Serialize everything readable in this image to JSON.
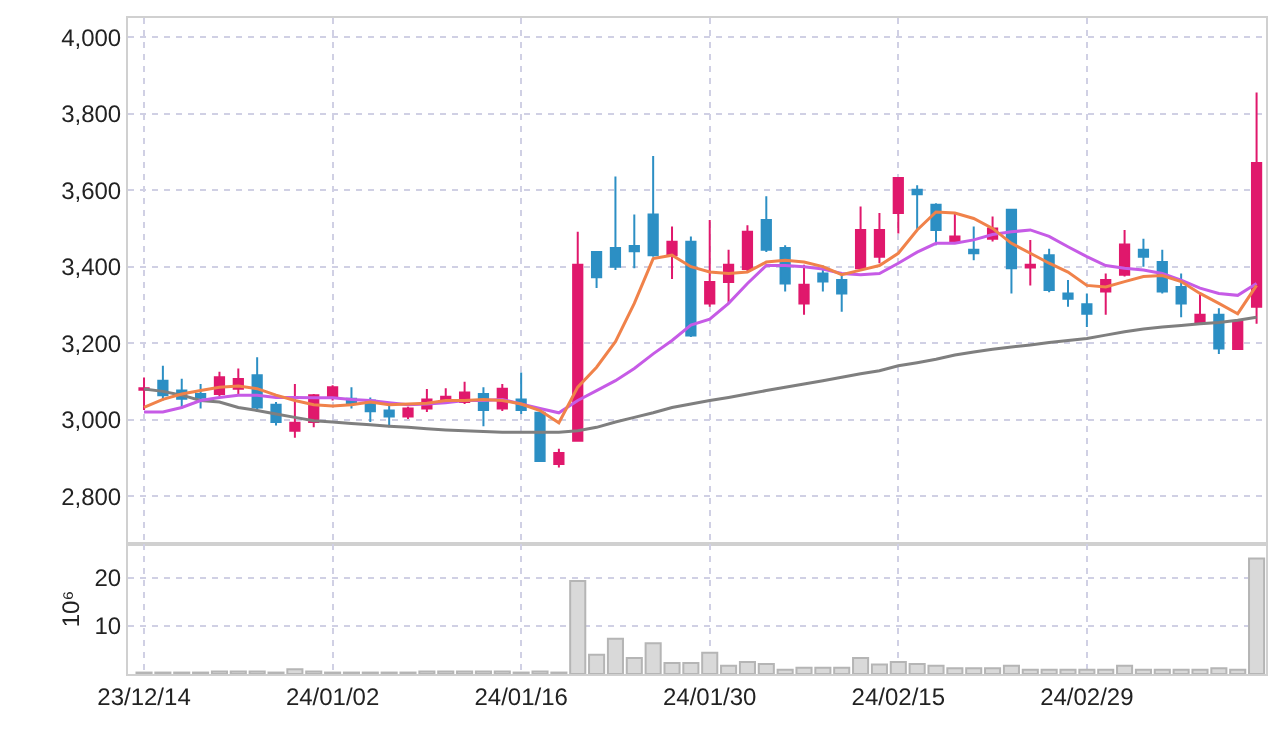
{
  "chart_data": [
    {
      "type": "candlestick",
      "tick_labels": "y",
      "grid": true,
      "categories": [
        null,
        null,
        null,
        null,
        null,
        null,
        null,
        null,
        null,
        null,
        null,
        null,
        null,
        null,
        null,
        null,
        null,
        null,
        null,
        null,
        null,
        null,
        null,
        null,
        null,
        null,
        null,
        null,
        null,
        null,
        null,
        null,
        null,
        null,
        null,
        null,
        null,
        null,
        null,
        null,
        null,
        null,
        null,
        null,
        null,
        null,
        null,
        null,
        null,
        null,
        null,
        null,
        null,
        null,
        null,
        null,
        null,
        null,
        null,
        null
      ],
      "ylim": [
        2675,
        4050
      ],
      "yticks": [
        {
          "value": 2800,
          "label": "2,800"
        },
        {
          "value": 3000,
          "label": "3,000"
        },
        {
          "value": 3200,
          "label": "3,200"
        },
        {
          "value": 3400,
          "label": "3,400"
        },
        {
          "value": 3600,
          "label": "3,600"
        },
        {
          "value": 3800,
          "label": "3,800"
        },
        {
          "value": 4000,
          "label": "4,000"
        }
      ],
      "ohlc": [
        [
          3078,
          3110,
          3025,
          3082
        ],
        [
          3102,
          3141,
          3050,
          3064
        ],
        [
          3076,
          3107,
          3029,
          3055
        ],
        [
          3067,
          3093,
          3029,
          3057
        ],
        [
          3067,
          3125,
          3062,
          3111
        ],
        [
          3081,
          3134,
          3064,
          3106
        ],
        [
          3116,
          3163,
          3020,
          3032
        ],
        [
          3039,
          3046,
          2985,
          2994
        ],
        [
          2971,
          3093,
          2953,
          2992
        ],
        [
          2994,
          3067,
          2980,
          3064
        ],
        [
          3062,
          3090,
          3050,
          3085
        ],
        [
          3055,
          3085,
          3029,
          3043
        ],
        [
          3050,
          3058,
          2994,
          3022
        ],
        [
          3024,
          3046,
          2980,
          3008
        ],
        [
          3008,
          3034,
          3002,
          3029
        ],
        [
          3029,
          3080,
          3020,
          3053
        ],
        [
          3050,
          3082,
          3045,
          3060
        ],
        [
          3046,
          3099,
          3041,
          3071
        ],
        [
          3067,
          3085,
          2983,
          3025
        ],
        [
          3029,
          3093,
          3023,
          3081
        ],
        [
          3053,
          3123,
          3015,
          3025
        ],
        [
          3018,
          3018,
          2892,
          2892
        ],
        [
          2884,
          2924,
          2875,
          2913
        ],
        [
          2945,
          3491,
          2945,
          3405
        ],
        [
          3438,
          3438,
          3344,
          3372
        ],
        [
          3449,
          3636,
          3391,
          3400
        ],
        [
          3454,
          3536,
          3396,
          3440
        ],
        [
          3536,
          3689,
          3426,
          3430
        ],
        [
          3430,
          3505,
          3368,
          3465
        ],
        [
          3465,
          3479,
          3216,
          3220
        ],
        [
          3304,
          3522,
          3295,
          3360
        ],
        [
          3360,
          3444,
          3304,
          3405
        ],
        [
          3394,
          3508,
          3386,
          3491
        ],
        [
          3522,
          3584,
          3438,
          3444
        ],
        [
          3449,
          3456,
          3335,
          3356
        ],
        [
          3304,
          3405,
          3274,
          3353
        ],
        [
          3382,
          3403,
          3335,
          3361
        ],
        [
          3365,
          3382,
          3282,
          3330
        ],
        [
          3396,
          3557,
          3391,
          3496
        ],
        [
          3426,
          3540,
          3409,
          3496
        ],
        [
          3540,
          3632,
          3487,
          3632
        ],
        [
          3601,
          3613,
          3496,
          3589
        ],
        [
          3562,
          3566,
          3456,
          3496
        ],
        [
          3466,
          3540,
          3461,
          3479
        ],
        [
          3444,
          3505,
          3417,
          3435
        ],
        [
          3473,
          3531,
          3466,
          3500
        ],
        [
          3549,
          3549,
          3330,
          3396
        ],
        [
          3398,
          3470,
          3351,
          3405
        ],
        [
          3430,
          3447,
          3333,
          3339
        ],
        [
          3330,
          3365,
          3295,
          3316
        ],
        [
          3302,
          3330,
          3242,
          3277
        ],
        [
          3335,
          3382,
          3274,
          3365
        ],
        [
          3379,
          3496,
          3374,
          3458
        ],
        [
          3444,
          3473,
          3400,
          3426
        ],
        [
          3412,
          3444,
          3330,
          3335
        ],
        [
          3347,
          3382,
          3268,
          3304
        ],
        [
          3255,
          3333,
          3251,
          3274
        ],
        [
          3274,
          3291,
          3172,
          3186
        ],
        [
          3185,
          3255,
          3185,
          3255
        ],
        [
          3295,
          3855,
          3251,
          3671
        ]
      ],
      "colors": [
        "#e0186c",
        "#2c8fc4",
        "#2c8fc4",
        "#2c8fc4",
        "#e0186c",
        "#e0186c",
        "#2c8fc4",
        "#2c8fc4",
        "#e0186c",
        "#e0186c",
        "#e0186c",
        "#2c8fc4",
        "#2c8fc4",
        "#2c8fc4",
        "#e0186c",
        "#e0186c",
        "#e0186c",
        "#e0186c",
        "#2c8fc4",
        "#e0186c",
        "#2c8fc4",
        "#2c8fc4",
        "#e0186c",
        "#e0186c",
        "#2c8fc4",
        "#2c8fc4",
        "#2c8fc4",
        "#2c8fc4",
        "#e0186c",
        "#2c8fc4",
        "#e0186c",
        "#e0186c",
        "#e0186c",
        "#2c8fc4",
        "#2c8fc4",
        "#e0186c",
        "#2c8fc4",
        "#2c8fc4",
        "#e0186c",
        "#e0186c",
        "#e0186c",
        "#2c8fc4",
        "#2c8fc4",
        "#e0186c",
        "#2c8fc4",
        "#e0186c",
        "#2c8fc4",
        "#e0186c",
        "#2c8fc4",
        "#2c8fc4",
        "#2c8fc4",
        "#e0186c",
        "#e0186c",
        "#2c8fc4",
        "#2c8fc4",
        "#2c8fc4",
        "#e0186c",
        "#2c8fc4",
        "#e0186c",
        "#e0186c"
      ],
      "series": [
        {
          "type": "line",
          "color": "#7f7f7f",
          "values": [
            3080,
            3074,
            3064,
            3050,
            3046,
            3032,
            3024,
            3015,
            3006,
            2997,
            2994,
            2990,
            2987,
            2983,
            2980,
            2976,
            2973,
            2971,
            2969,
            2967,
            2967,
            2967,
            2967,
            2971,
            2980,
            2994,
            3006,
            3018,
            3032,
            3041,
            3050,
            3058,
            3067,
            3076,
            3085,
            3093,
            3102,
            3111,
            3120,
            3128,
            3141,
            3149,
            3158,
            3169,
            3177,
            3184,
            3190,
            3195,
            3202,
            3207,
            3212,
            3221,
            3230,
            3237,
            3242,
            3246,
            3251,
            3254,
            3260,
            3268
          ]
        },
        {
          "type": "line",
          "color": "#c65be6",
          "values": [
            3020,
            3020,
            3032,
            3050,
            3058,
            3064,
            3064,
            3058,
            3058,
            3057,
            3057,
            3053,
            3050,
            3044,
            3039,
            3041,
            3044,
            3050,
            3050,
            3053,
            3041,
            3029,
            3018,
            3050,
            3076,
            3102,
            3134,
            3172,
            3207,
            3247,
            3263,
            3304,
            3356,
            3403,
            3403,
            3400,
            3394,
            3382,
            3379,
            3382,
            3409,
            3438,
            3461,
            3461,
            3470,
            3484,
            3491,
            3496,
            3479,
            3452,
            3426,
            3403,
            3396,
            3391,
            3382,
            3365,
            3344,
            3330,
            3325,
            3356
          ]
        },
        {
          "type": "line",
          "color": "#f0824a",
          "values": [
            3032,
            3053,
            3067,
            3076,
            3085,
            3088,
            3081,
            3064,
            3050,
            3039,
            3036,
            3039,
            3046,
            3039,
            3041,
            3043,
            3050,
            3050,
            3053,
            3050,
            3041,
            3024,
            2992,
            3085,
            3137,
            3204,
            3304,
            3421,
            3430,
            3400,
            3386,
            3382,
            3386,
            3412,
            3417,
            3412,
            3400,
            3379,
            3391,
            3403,
            3435,
            3496,
            3543,
            3540,
            3526,
            3500,
            3461,
            3435,
            3409,
            3386,
            3351,
            3347,
            3361,
            3374,
            3377,
            3361,
            3330,
            3304,
            3277,
            3351
          ]
        }
      ]
    },
    {
      "type": "bar",
      "grid": true,
      "ylabel": "10⁶",
      "color": "#d9d9d9",
      "categories": [
        "23/12/14",
        null,
        null,
        null,
        null,
        null,
        null,
        null,
        null,
        null,
        "24/01/02",
        null,
        null,
        null,
        null,
        null,
        null,
        null,
        null,
        null,
        "24/01/16",
        null,
        null,
        null,
        null,
        null,
        null,
        null,
        null,
        null,
        "24/01/30",
        null,
        null,
        null,
        null,
        null,
        null,
        null,
        null,
        null,
        "24/02/15",
        null,
        null,
        null,
        null,
        null,
        null,
        null,
        null,
        null,
        "24/02/29",
        null,
        null,
        null,
        null,
        null,
        null,
        null,
        null,
        null
      ],
      "ylim": [
        0,
        27
      ],
      "yticks": [
        10,
        20
      ],
      "values": [
        0.3,
        0.3,
        0.3,
        0.3,
        0.5,
        0.5,
        0.5,
        0.3,
        1,
        0.5,
        0.3,
        0.3,
        0.3,
        0.3,
        0.3,
        0.5,
        0.5,
        0.5,
        0.5,
        0.5,
        0.3,
        0.5,
        0.3,
        19.3,
        4,
        7.3,
        3.3,
        6.4,
        2.3,
        2.3,
        4.4,
        1.7,
        2.5,
        2.1,
        0.9,
        1.3,
        1.3,
        1.3,
        3.3,
        2,
        2.5,
        2.1,
        1.7,
        1.2,
        1.2,
        1.2,
        1.7,
        0.9,
        0.9,
        0.9,
        0.9,
        0.9,
        1.7,
        0.9,
        0.9,
        0.9,
        0.9,
        1.2,
        0.9,
        24
      ]
    }
  ]
}
